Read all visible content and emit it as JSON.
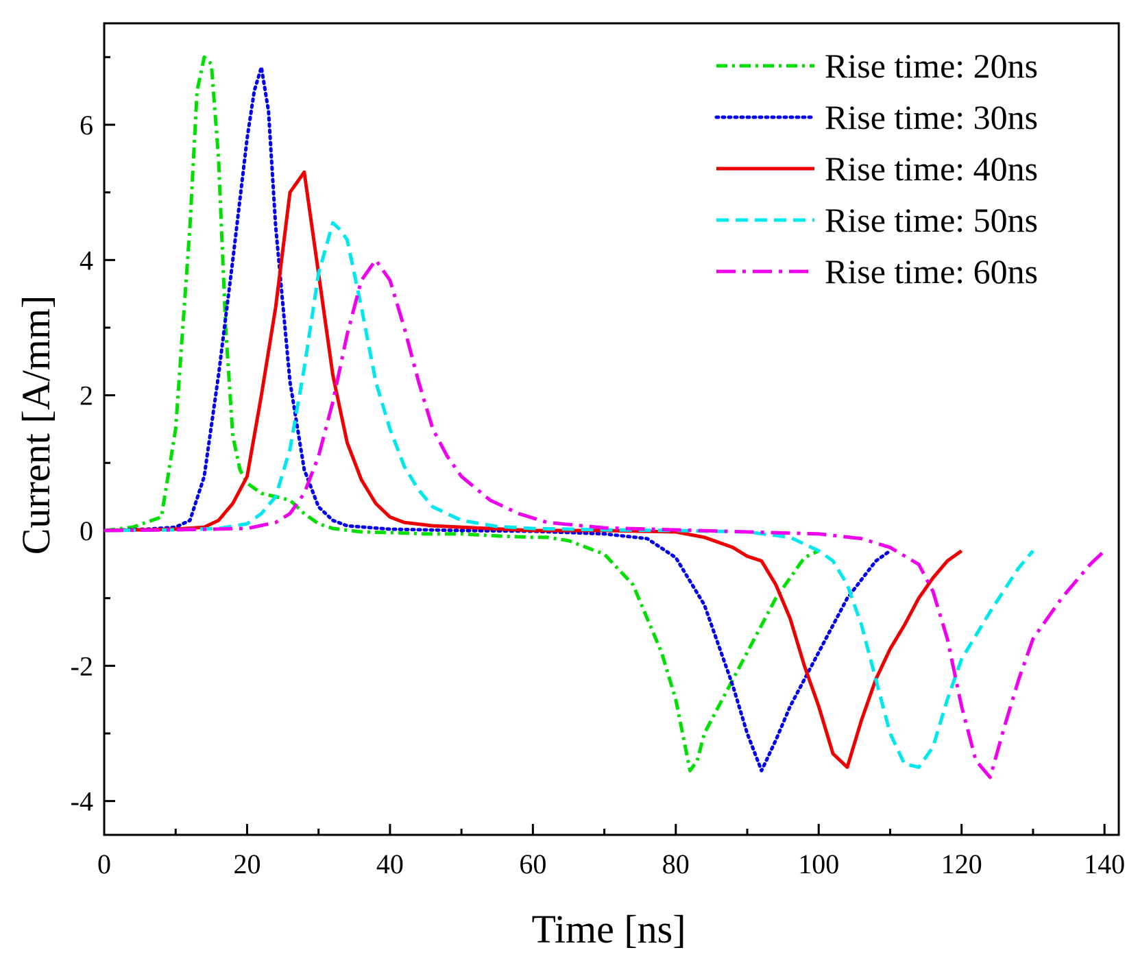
{
  "chart_data": {
    "type": "line",
    "title": "",
    "xlabel": "Time [ns]",
    "ylabel": "Current [A/mm]",
    "xlim": [
      0,
      142
    ],
    "ylim": [
      -4.5,
      7.5
    ],
    "xticks": [
      0,
      20,
      40,
      60,
      80,
      100,
      120,
      140
    ],
    "yticks": [
      -4,
      -2,
      0,
      2,
      4,
      6
    ],
    "xtick_labels": [
      "0",
      "20",
      "40",
      "60",
      "80",
      "100",
      "120",
      "140"
    ],
    "ytick_labels": [
      "-4",
      "-2",
      "0",
      "2",
      "4",
      "6"
    ],
    "grid": false,
    "legend_position": "top-right",
    "series": [
      {
        "name": "Rise time: 20ns",
        "color": "#00e000",
        "dash": "dash-dot",
        "x": [
          0,
          4,
          8,
          10,
          12,
          13,
          14,
          15,
          16,
          17,
          18,
          19,
          20,
          22,
          24,
          26,
          28,
          30,
          32,
          36,
          40,
          45,
          50,
          55,
          60,
          62,
          65,
          70,
          74,
          78,
          80,
          82,
          83,
          84,
          86,
          90,
          94,
          98,
          100
        ],
        "y": [
          0,
          0.05,
          0.2,
          1.5,
          4.5,
          6.5,
          7.0,
          6.9,
          5.5,
          3.0,
          1.4,
          0.9,
          0.7,
          0.55,
          0.5,
          0.45,
          0.25,
          0.1,
          0.03,
          -0.02,
          -0.03,
          -0.05,
          -0.05,
          -0.08,
          -0.1,
          -0.1,
          -0.15,
          -0.35,
          -0.8,
          -1.8,
          -2.5,
          -3.55,
          -3.4,
          -3.0,
          -2.6,
          -1.8,
          -1.0,
          -0.4,
          -0.3
        ]
      },
      {
        "name": "Rise time: 30ns",
        "color": "#0000ee",
        "dash": "dotted",
        "x": [
          0,
          6,
          10,
          12,
          14,
          16,
          18,
          20,
          21,
          22,
          23,
          24,
          26,
          28,
          30,
          32,
          34,
          40,
          50,
          60,
          70,
          76,
          80,
          84,
          88,
          90,
          92,
          94,
          96,
          100,
          104,
          108,
          110
        ],
        "y": [
          0,
          0.02,
          0.05,
          0.15,
          0.8,
          2.3,
          4.0,
          5.8,
          6.5,
          6.85,
          6.2,
          4.5,
          2.2,
          0.9,
          0.35,
          0.15,
          0.07,
          0.02,
          0.0,
          -0.01,
          -0.05,
          -0.12,
          -0.4,
          -1.1,
          -2.3,
          -3.0,
          -3.55,
          -3.1,
          -2.6,
          -1.8,
          -1.0,
          -0.45,
          -0.3
        ]
      },
      {
        "name": "Rise time: 40ns",
        "color": "#ee0000",
        "dash": "solid",
        "x": [
          0,
          10,
          14,
          16,
          18,
          20,
          22,
          24,
          26,
          28,
          30,
          32,
          34,
          36,
          38,
          40,
          42,
          46,
          50,
          60,
          70,
          80,
          84,
          88,
          90,
          92,
          94,
          96,
          98,
          100,
          102,
          104,
          106,
          108,
          110,
          112,
          114,
          116,
          118,
          120
        ],
        "y": [
          0,
          0.02,
          0.05,
          0.15,
          0.4,
          0.8,
          2.0,
          3.3,
          5.0,
          5.3,
          3.8,
          2.3,
          1.3,
          0.75,
          0.4,
          0.2,
          0.12,
          0.07,
          0.05,
          0.0,
          0.0,
          -0.02,
          -0.1,
          -0.25,
          -0.38,
          -0.45,
          -0.8,
          -1.3,
          -2.0,
          -2.6,
          -3.3,
          -3.5,
          -2.8,
          -2.2,
          -1.75,
          -1.4,
          -1.0,
          -0.7,
          -0.45,
          -0.3
        ]
      },
      {
        "name": "Rise time: 50ns",
        "color": "#00e8ee",
        "dash": "dashed",
        "x": [
          0,
          10,
          16,
          20,
          22,
          24,
          26,
          28,
          30,
          32,
          33,
          34,
          36,
          38,
          40,
          42,
          44,
          46,
          50,
          55,
          60,
          70,
          80,
          90,
          96,
          100,
          102,
          104,
          106,
          108,
          110,
          112,
          114,
          116,
          118,
          120,
          124,
          128,
          130
        ],
        "y": [
          0,
          0.01,
          0.03,
          0.1,
          0.25,
          0.5,
          1.2,
          2.4,
          3.8,
          4.55,
          4.45,
          4.3,
          3.3,
          2.2,
          1.5,
          0.95,
          0.6,
          0.35,
          0.15,
          0.06,
          0.03,
          0.01,
          0.0,
          -0.02,
          -0.1,
          -0.3,
          -0.45,
          -0.8,
          -1.4,
          -2.2,
          -3.0,
          -3.45,
          -3.5,
          -3.2,
          -2.5,
          -1.9,
          -1.2,
          -0.55,
          -0.3
        ]
      },
      {
        "name": "Rise time: 60ns",
        "color": "#ee00ee",
        "dash": "long-dash-dot",
        "x": [
          0,
          10,
          20,
          24,
          26,
          28,
          30,
          32,
          34,
          36,
          38,
          40,
          42,
          44,
          46,
          48,
          50,
          54,
          58,
          62,
          70,
          80,
          90,
          100,
          106,
          110,
          114,
          116,
          118,
          120,
          122,
          124,
          126,
          128,
          130,
          134,
          138,
          140
        ],
        "y": [
          0,
          0.01,
          0.03,
          0.12,
          0.25,
          0.55,
          1.1,
          1.9,
          2.9,
          3.7,
          4.0,
          3.7,
          3.0,
          2.2,
          1.5,
          1.1,
          0.8,
          0.45,
          0.25,
          0.12,
          0.04,
          0.01,
          -0.02,
          -0.05,
          -0.12,
          -0.25,
          -0.5,
          -0.9,
          -1.6,
          -2.6,
          -3.4,
          -3.65,
          -2.9,
          -2.2,
          -1.6,
          -1.0,
          -0.5,
          -0.3
        ]
      }
    ]
  }
}
